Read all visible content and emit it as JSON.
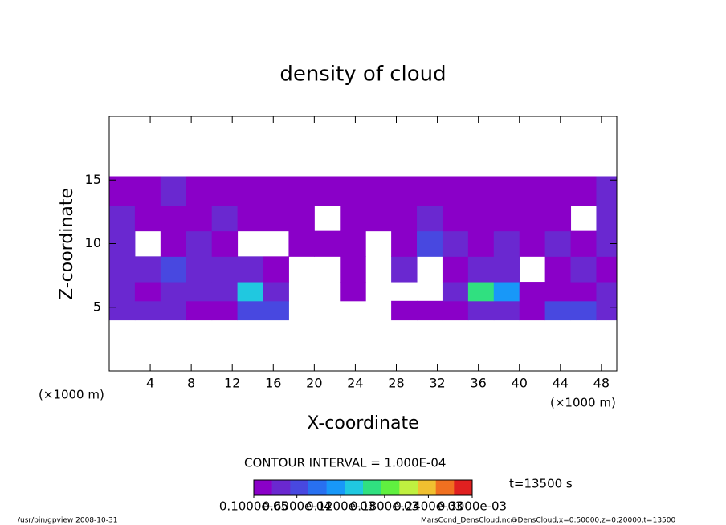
{
  "chart_data": {
    "type": "heatmap",
    "title": "density of cloud",
    "x_label": "X-coordinate",
    "y_label": "Z-coordinate",
    "x_unit": "(×1000 m)",
    "y_unit": "(×1000 m)",
    "xlim": [
      0,
      49.5
    ],
    "xticks": [
      4,
      8,
      12,
      16,
      20,
      24,
      28,
      32,
      36,
      40,
      44,
      48
    ],
    "ylim": [
      0,
      20
    ],
    "yticks": [
      5,
      10,
      15
    ],
    "xbins": [
      0,
      2.5,
      5,
      7.5,
      10,
      12.5,
      15,
      17.5,
      20,
      22.5,
      25,
      27.5,
      30,
      32.5,
      35,
      37.5,
      40,
      42.5,
      45,
      47.5,
      49.5
    ],
    "ybins": [
      4,
      5.5,
      7,
      9,
      11,
      13,
      15.3
    ],
    "values": [
      [
        3e-05,
        4e-05,
        5e-05,
        2e-05,
        2e-05,
        8e-05,
        6e-05,
        null,
        null,
        null,
        null,
        1e-05,
        1e-05,
        2e-05,
        5e-05,
        4e-05,
        1e-05,
        6e-05,
        7e-05,
        4e-05
      ],
      [
        4e-05,
        2e-05,
        3e-05,
        4e-05,
        3e-05,
        0.00015,
        3e-05,
        null,
        null,
        1e-05,
        null,
        null,
        null,
        3e-05,
        0.00018,
        0.00012,
        1e-05,
        1e-05,
        2e-05,
        3e-05
      ],
      [
        5e-05,
        3e-05,
        6e-05,
        4e-05,
        5e-05,
        3e-05,
        2e-05,
        null,
        null,
        2e-05,
        null,
        4e-05,
        null,
        2e-05,
        4e-05,
        3e-05,
        null,
        1e-05,
        3e-05,
        2e-05
      ],
      [
        4e-05,
        null,
        2e-05,
        3e-05,
        2e-05,
        null,
        null,
        1e-05,
        2e-05,
        2e-05,
        null,
        2e-05,
        6e-05,
        3e-05,
        2e-05,
        3e-05,
        2e-05,
        3e-05,
        2e-05,
        5e-05
      ],
      [
        3e-05,
        2e-05,
        1e-05,
        2e-05,
        3e-05,
        2e-05,
        1e-05,
        2e-05,
        null,
        1e-05,
        1e-05,
        2e-05,
        3e-05,
        2e-05,
        2e-05,
        1e-05,
        2e-05,
        1e-05,
        null,
        3e-05
      ],
      [
        2e-05,
        1e-05,
        3e-05,
        1e-05,
        2e-05,
        1e-05,
        2e-05,
        2e-05,
        1e-05,
        2e-05,
        1e-05,
        1e-05,
        2e-05,
        1e-05,
        2e-05,
        1e-05,
        2e-05,
        1e-05,
        2e-05,
        4e-05
      ]
    ],
    "colorbar": {
      "lim": [
        1e-06,
        0.0003
      ],
      "colors": [
        "#8a00c8",
        "#6a28d0",
        "#4848e0",
        "#2870f0",
        "#1898f8",
        "#20c8e0",
        "#30e080",
        "#60f040",
        "#c0f040",
        "#f0c030",
        "#f07020",
        "#e02020"
      ],
      "ticks": [
        {
          "value": 1e-06,
          "label": "0.1000e-05"
        },
        {
          "value": 6e-05,
          "label": "0.6000e-04"
        },
        {
          "value": 0.00012,
          "label": "0.1200e-03"
        },
        {
          "value": 0.00018,
          "label": "0.1800e-03"
        },
        {
          "value": 0.00024,
          "label": "0.2400e-03"
        },
        {
          "value": 0.0003,
          "label": "0.3000e-03"
        }
      ]
    },
    "contour_interval": "CONTOUR INTERVAL = 1.000E-04",
    "time": "t=13500 s",
    "footer_left": "/usr/bin/gpview  2008-10-31",
    "footer_right": "MarsCond_DensCloud.nc@DensCloud,x=0:50000,z=0:20000,t=13500"
  }
}
